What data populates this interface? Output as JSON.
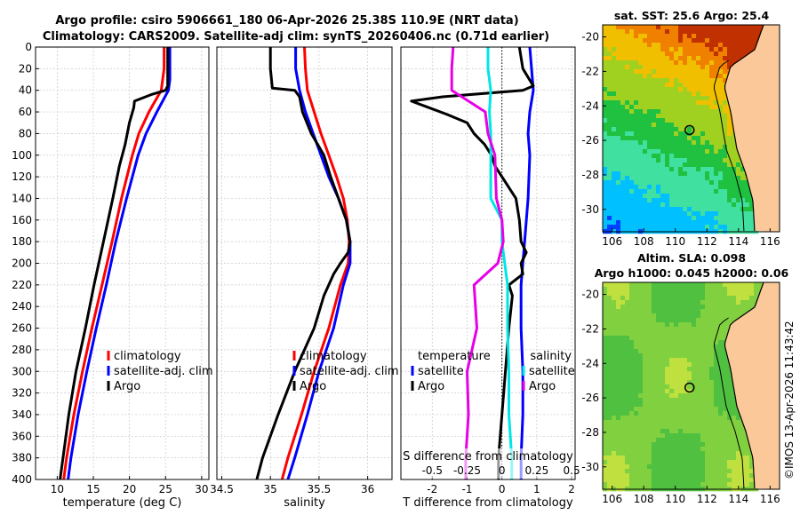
{
  "title_line1": "Argo profile: csiro 5906661_180 06-Apr-2026 25.38S 110.9E (NRT data)",
  "title_line2": "Climatology: CARS2009. Satellite-adj clim: synTS_20260406.nc (0.71d earlier)",
  "credit": "©IMOS 13-Apr-2026 11:43:42",
  "colors": {
    "climatology": "#ff0000",
    "satellite": "#0000ff",
    "argo": "#000000",
    "sat_s": "#00e6e6",
    "argo_s": "#e600e6"
  },
  "chart_data": [
    {
      "type": "line",
      "id": "temperature",
      "xlabel": "temperature (deg C)",
      "xlim": [
        7,
        31
      ],
      "xticks": [
        10,
        15,
        20,
        25,
        30
      ],
      "xtick_labels": [
        "10",
        "15",
        "20",
        "25",
        "30"
      ],
      "ylim": [
        0,
        400
      ],
      "yticks": [
        0,
        20,
        40,
        60,
        80,
        100,
        120,
        140,
        160,
        180,
        200,
        220,
        240,
        260,
        280,
        300,
        320,
        340,
        360,
        380,
        400
      ],
      "ytick_labels": [
        "0",
        "20",
        "40",
        "60",
        "80",
        "100",
        "120",
        "140",
        "160",
        "180",
        "200",
        "220",
        "240",
        "260",
        "280",
        "300",
        "320",
        "340",
        "360",
        "380",
        "400"
      ],
      "legend": [
        {
          "label": "climatology",
          "color": "#ff0000"
        },
        {
          "label": "satellite-adj. clim",
          "color": "#0000ff"
        },
        {
          "label": "Argo",
          "color": "#000000"
        }
      ],
      "series": [
        {
          "name": "climatology",
          "color": "#ff0000",
          "depth": [
            0,
            20,
            40,
            60,
            80,
            100,
            140,
            180,
            220,
            260,
            300,
            340,
            380,
            400
          ],
          "values": [
            24.8,
            24.8,
            24.4,
            22.7,
            21.3,
            20.4,
            18.9,
            17.6,
            16.2,
            14.8,
            13.5,
            12.3,
            11.3,
            10.9
          ]
        },
        {
          "name": "satellite-adj. clim",
          "color": "#0000ff",
          "depth": [
            0,
            20,
            30,
            40,
            60,
            80,
            100,
            140,
            180,
            220,
            260,
            300,
            340,
            380,
            400
          ],
          "values": [
            25.6,
            25.6,
            25.6,
            25.4,
            23.8,
            22.3,
            21.2,
            19.6,
            18.1,
            16.8,
            15.4,
            14.1,
            12.9,
            11.9,
            11.5
          ]
        },
        {
          "name": "Argo",
          "color": "#000000",
          "depth": [
            0,
            20,
            36,
            40,
            44,
            50,
            56,
            70,
            90,
            110,
            140,
            180,
            220,
            260,
            300,
            340,
            380,
            400
          ],
          "values": [
            25.3,
            25.3,
            25.3,
            25.0,
            23.0,
            20.7,
            20.6,
            20.0,
            19.4,
            18.6,
            17.7,
            16.4,
            15.1,
            13.9,
            12.6,
            11.6,
            10.8,
            10.4
          ]
        }
      ]
    },
    {
      "type": "line",
      "id": "salinity",
      "xlabel": "salinity",
      "xlim": [
        34.45,
        36.25
      ],
      "xticks": [
        34.5,
        35,
        35.5,
        36
      ],
      "xtick_labels": [
        "34.5",
        "35",
        "35.5",
        "36"
      ],
      "ylim": [
        0,
        400
      ],
      "legend": [
        {
          "label": "climatology",
          "color": "#ff0000"
        },
        {
          "label": "satellite-adj. clim",
          "color": "#0000ff"
        },
        {
          "label": "Argo",
          "color": "#000000"
        }
      ],
      "series": [
        {
          "name": "climatology",
          "color": "#ff0000",
          "depth": [
            0,
            20,
            40,
            60,
            80,
            100,
            120,
            140,
            160,
            180,
            200,
            220,
            260,
            300,
            340,
            380,
            400
          ],
          "values": [
            35.35,
            35.36,
            35.38,
            35.45,
            35.52,
            35.6,
            35.68,
            35.75,
            35.79,
            35.81,
            35.8,
            35.72,
            35.6,
            35.45,
            35.32,
            35.18,
            35.12
          ]
        },
        {
          "name": "satellite-adj. clim",
          "color": "#0000ff",
          "depth": [
            0,
            20,
            40,
            60,
            80,
            100,
            120,
            140,
            160,
            180,
            200,
            220,
            260,
            300,
            340,
            380,
            400
          ],
          "values": [
            35.26,
            35.26,
            35.3,
            35.36,
            35.44,
            35.52,
            35.6,
            35.7,
            35.78,
            35.82,
            35.82,
            35.75,
            35.65,
            35.5,
            35.38,
            35.25,
            35.18
          ]
        },
        {
          "name": "Argo",
          "color": "#000000",
          "depth": [
            0,
            20,
            38,
            40,
            46,
            60,
            80,
            100,
            120,
            140,
            160,
            180,
            190,
            200,
            210,
            230,
            260,
            300,
            340,
            380,
            400
          ],
          "values": [
            35.0,
            35.0,
            35.02,
            35.25,
            35.3,
            35.33,
            35.42,
            35.55,
            35.62,
            35.7,
            35.78,
            35.82,
            35.8,
            35.72,
            35.65,
            35.55,
            35.45,
            35.25,
            35.08,
            34.92,
            34.86
          ]
        }
      ]
    },
    {
      "type": "line",
      "id": "difference",
      "xlabel": "T difference from climatology",
      "xlim": [
        -2.9,
        2.1
      ],
      "xticks": [
        -2,
        -1,
        0,
        1,
        2
      ],
      "xtick_labels": [
        "-2",
        "-1",
        "0",
        "1",
        "2"
      ],
      "s_axis_label": "S difference from climatology",
      "s_scale": 0.25,
      "s_ticks": [
        "-0.5",
        "-0.25",
        "0",
        "0.25",
        "0.5"
      ],
      "ylim": [
        0,
        400
      ],
      "legend_t_title": "temperature",
      "legend_s_title": "salinity",
      "legend_t": [
        {
          "label": "satellite",
          "color": "#0000ff"
        },
        {
          "label": "Argo",
          "color": "#000000"
        }
      ],
      "legend_s": [
        {
          "label": "satellite",
          "color": "#00e6e6"
        },
        {
          "label": "Argo",
          "color": "#e600e6"
        }
      ],
      "series": [
        {
          "name": "T satellite",
          "color": "#0000ff",
          "depth": [
            0,
            40,
            60,
            80,
            100,
            140,
            180,
            220,
            260,
            300,
            340,
            380,
            400
          ],
          "values": [
            0.8,
            0.9,
            0.8,
            0.75,
            0.8,
            0.75,
            0.65,
            0.55,
            0.55,
            0.6,
            0.6,
            0.55,
            0.55
          ]
        },
        {
          "name": "T Argo",
          "color": "#000000",
          "depth": [
            0,
            20,
            36,
            40,
            46,
            50,
            56,
            62,
            70,
            80,
            90,
            100,
            110,
            120,
            140,
            160,
            180,
            190,
            200,
            210,
            220,
            230,
            260,
            300,
            340,
            380,
            400
          ],
          "values": [
            0.5,
            0.6,
            0.9,
            0.6,
            -1.7,
            -2.6,
            -2.1,
            -1.6,
            -1.0,
            -0.8,
            -0.5,
            -0.3,
            -0.2,
            0.0,
            0.4,
            0.5,
            0.55,
            0.7,
            0.55,
            0.6,
            0.2,
            0.3,
            0.2,
            0.1,
            0.0,
            -0.1,
            -0.1
          ]
        },
        {
          "name": "S satellite",
          "color": "#00e6e6",
          "depth": [
            0,
            20,
            40,
            60,
            80,
            100,
            140,
            160,
            180,
            200,
            220,
            260,
            300,
            340,
            380,
            400
          ],
          "values": [
            -0.1,
            -0.1,
            -0.08,
            -0.09,
            -0.08,
            -0.08,
            -0.08,
            0.0,
            0.0,
            0.02,
            0.04,
            0.04,
            0.05,
            0.05,
            0.07,
            0.07
          ]
        },
        {
          "name": "S Argo",
          "color": "#e600e6",
          "depth": [
            0,
            20,
            40,
            60,
            80,
            100,
            140,
            160,
            180,
            200,
            220,
            260,
            300,
            340,
            380,
            400
          ],
          "values": [
            -0.35,
            -0.36,
            -0.36,
            -0.12,
            -0.1,
            -0.05,
            -0.04,
            0.0,
            0.01,
            -0.03,
            -0.2,
            -0.18,
            -0.25,
            -0.24,
            -0.26,
            -0.26
          ]
        }
      ]
    },
    {
      "type": "heatmap",
      "id": "sst_map",
      "title": "sat. SST: 25.6 Argo: 25.4",
      "xlim": [
        105.4,
        116.6
      ],
      "xticks": [
        "106",
        "108",
        "110",
        "112",
        "114",
        "116"
      ],
      "ylim": [
        -31.3,
        -19.3
      ],
      "yticks": [
        "-20",
        "-22",
        "-24",
        "-26",
        "-28",
        "-30"
      ],
      "marker": {
        "lon": 110.9,
        "lat": -25.4
      }
    },
    {
      "type": "heatmap",
      "id": "sla_map",
      "title": "Altim. SLA: 0.098",
      "subtitle": "Argo h1000: 0.045 h2000: 0.06",
      "xlim": [
        105.4,
        116.6
      ],
      "xticks": [
        "106",
        "108",
        "110",
        "112",
        "114",
        "116"
      ],
      "ylim": [
        -31.3,
        -19.3
      ],
      "yticks": [
        "-20",
        "-22",
        "-24",
        "-26",
        "-28",
        "-30"
      ],
      "marker": {
        "lon": 110.9,
        "lat": -25.4
      }
    }
  ]
}
